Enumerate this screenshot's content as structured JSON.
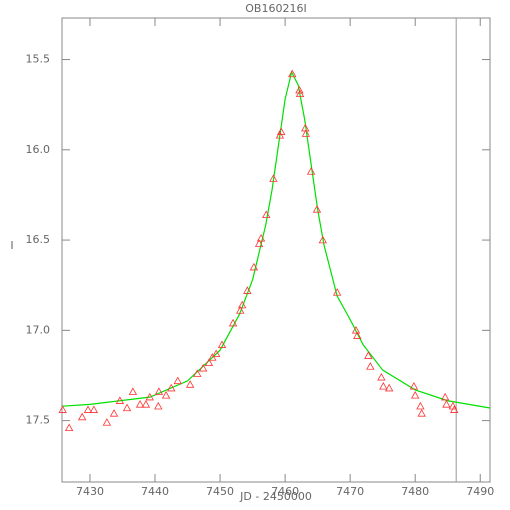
{
  "chart_data": {
    "type": "scatter",
    "title": "OB160216I",
    "x_label": "JD - 2450000",
    "y_label": "I",
    "x": [
      7425.8,
      7426.8,
      7428.8,
      7429.7,
      7430.6,
      7432.6,
      7433.7,
      7434.6,
      7435.7,
      7436.6,
      7437.7,
      7438.6,
      7439.2,
      7440.5,
      7440.6,
      7441.7,
      7442.5,
      7443.5,
      7445.4,
      7446.5,
      7447.4,
      7448.3,
      7448.8,
      7449.4,
      7450.3,
      7452.0,
      7453.1,
      7453.4,
      7454.2,
      7455.2,
      7456.0,
      7456.3,
      7457.1,
      7458.2,
      7459.2,
      7459.4,
      7461.1,
      7462.2,
      7462.3,
      7463.1,
      7463.2,
      7464.0,
      7464.9,
      7465.8,
      7468.0,
      7470.9,
      7471.1,
      7472.8,
      7473.1,
      7474.8,
      7475.1,
      7476.0,
      7479.8,
      7480.0,
      7480.8,
      7481.0,
      7484.6,
      7484.8,
      7485.8,
      7486.0
    ],
    "values": [
      17.44,
      17.54,
      17.48,
      17.44,
      17.44,
      17.51,
      17.46,
      17.39,
      17.43,
      17.34,
      17.41,
      17.41,
      17.37,
      17.42,
      17.34,
      17.36,
      17.32,
      17.28,
      17.3,
      17.24,
      17.21,
      17.18,
      17.15,
      17.13,
      17.08,
      16.96,
      16.89,
      16.86,
      16.78,
      16.65,
      16.52,
      16.49,
      16.36,
      16.16,
      15.92,
      15.9,
      15.58,
      15.67,
      15.69,
      15.88,
      15.91,
      16.12,
      16.33,
      16.5,
      16.79,
      17.0,
      17.03,
      17.14,
      17.2,
      17.26,
      17.31,
      17.32,
      17.31,
      17.36,
      17.42,
      17.46,
      17.37,
      17.41,
      17.42,
      17.44
    ],
    "color": "#ff3030",
    "marker": "triangle",
    "fit": {
      "x": [
        7425.7,
        7430,
        7439.2,
        7445,
        7450,
        7453,
        7455,
        7457,
        7458,
        7459,
        7460,
        7461,
        7462,
        7463,
        7464,
        7465,
        7466,
        7468,
        7470,
        7472,
        7475,
        7480,
        7485,
        7491.5
      ],
      "values": [
        17.42,
        17.41,
        17.37,
        17.28,
        17.11,
        16.91,
        16.72,
        16.42,
        16.22,
        15.97,
        15.72,
        15.57,
        15.64,
        15.83,
        16.08,
        16.33,
        16.53,
        16.81,
        16.94,
        17.08,
        17.22,
        17.33,
        17.39,
        17.43
      ],
      "color": "#00e000"
    },
    "vline": 7486.3,
    "vline_color": "#999999",
    "xlim": [
      7425.7,
      7491.5
    ],
    "ylim": [
      15.27,
      17.84
    ],
    "y_inverted": true,
    "xticks": [
      7430,
      7440,
      7450,
      7460,
      7470,
      7480,
      7490
    ],
    "yticks": [
      15.5,
      {
        "value": 16,
        "label": "16.0"
      },
      16.5,
      {
        "value": 17,
        "label": "17.0"
      },
      17.5
    ]
  }
}
